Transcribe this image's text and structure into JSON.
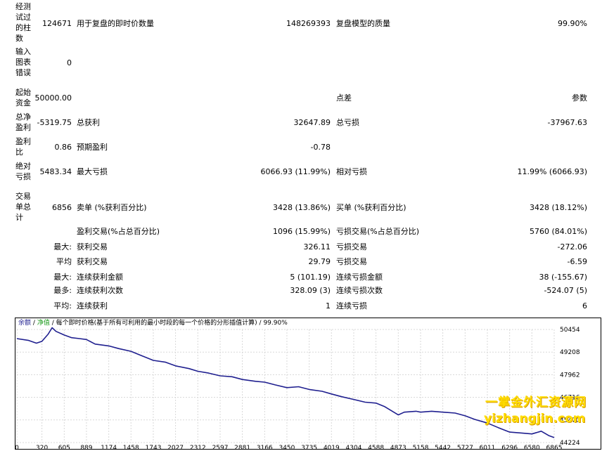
{
  "stats": {
    "bars_tested_label": "经测试过的柱数",
    "bars_tested_value": "124671",
    "ticks_label": "用于复盘的即时价数量",
    "ticks_value": "148269393",
    "quality_label": "复盘模型的质量",
    "quality_value": "99.90%",
    "errors_label": "输入图表错误",
    "errors_value": "0",
    "deposit_label": "起始资金",
    "deposit_value": "50000.00",
    "spread_label": "点差",
    "params_label": "参数",
    "net_profit_label": "总净盈利",
    "net_profit_value": "-5319.75",
    "gross_profit_label": "总获利",
    "gross_profit_value": "32647.89",
    "gross_loss_label": "总亏损",
    "gross_loss_value": "-37967.63",
    "profit_factor_label": "盈利比",
    "profit_factor_value": "0.86",
    "expected_payoff_label": "预期盈利",
    "expected_payoff_value": "-0.78",
    "abs_drawdown_label": "绝对亏损",
    "abs_drawdown_value": "5483.34",
    "max_drawdown_label": "最大亏损",
    "max_drawdown_value": "6066.93 (11.99%)",
    "rel_drawdown_label": "相对亏损",
    "rel_drawdown_value": "11.99% (6066.93)",
    "total_trades_label": "交易单总计",
    "total_trades_value": "6856",
    "short_label": "卖单 (%获利百分比)",
    "short_value": "3428 (13.86%)",
    "long_label": "买单 (%获利百分比)",
    "long_value": "3428 (18.12%)",
    "profit_trades_label": "盈利交易(%占总百分比)",
    "profit_trades_value": "1096 (15.99%)",
    "loss_trades_label": "亏损交易(%占总百分比)",
    "loss_trades_value": "5760 (84.01%)",
    "largest_prefix": "最大:",
    "largest_profit_label": "获利交易",
    "largest_profit_value": "326.11",
    "largest_loss_label": "亏损交易",
    "largest_loss_value": "-272.06",
    "average_prefix": "平均",
    "average_profit_label": "获利交易",
    "average_profit_value": "29.79",
    "average_loss_label": "亏损交易",
    "average_loss_value": "-6.59",
    "max_consec_prefix": "最大:",
    "max_consec_wins_label": "连续获利金额",
    "max_consec_wins_value": "5 (101.19)",
    "max_consec_losses_label": "连续亏损金额",
    "max_consec_losses_value": "38 (-155.67)",
    "maximal_prefix": "最多:",
    "maximal_wins_label": "连续获利次数",
    "maximal_wins_value": "328.09 (3)",
    "maximal_losses_label": "连续亏损次数",
    "maximal_losses_value": "-524.07 (5)",
    "avg_consec_prefix": "平均:",
    "avg_consec_wins_label": "连续获利",
    "avg_consec_wins_value": "1",
    "avg_consec_losses_label": "连续亏损",
    "avg_consec_losses_value": "6"
  },
  "chart_caption": {
    "balance": "余额",
    "equity": "净值",
    "model": "每个即时价格(基于所有可利用的最小时段的每一个价格的分形插值计算)",
    "quality": "99.90%",
    "sep": "/",
    "balance_color": "#1f1f8f",
    "equity_color": "#1a9a1a"
  },
  "watermark": {
    "line1": "一掌金外汇资源网",
    "line2": "yizhangjin.com"
  },
  "chart_data": {
    "type": "line",
    "title": "",
    "xlabel": "",
    "ylabel": "",
    "x_ticks": [
      "0",
      "320",
      "605",
      "889",
      "1174",
      "1458",
      "1743",
      "2027",
      "2312",
      "2597",
      "2881",
      "3166",
      "3450",
      "3735",
      "4019",
      "4304",
      "4588",
      "4873",
      "5158",
      "5442",
      "5727",
      "6011",
      "6296",
      "6580",
      "6865"
    ],
    "y_ticks": [
      "50454",
      "49208",
      "47962",
      "46716",
      "45470",
      "44224"
    ],
    "xlim": [
      0,
      6865
    ],
    "ylim": [
      44224,
      50454
    ],
    "grid": true,
    "series": [
      {
        "color": "#1f1f8f",
        "x": [
          0,
          150,
          250,
          320,
          400,
          450,
          500,
          605,
          700,
          800,
          889,
          1000,
          1174,
          1300,
          1458,
          1600,
          1743,
          1900,
          2027,
          2200,
          2312,
          2450,
          2597,
          2750,
          2881,
          3050,
          3166,
          3300,
          3450,
          3600,
          3735,
          3900,
          4019,
          4150,
          4304,
          4450,
          4588,
          4700,
          4873,
          4950,
          5100,
          5158,
          5300,
          5442,
          5600,
          5727,
          5850,
          6011,
          6150,
          6296,
          6450,
          6580,
          6700,
          6800,
          6865
        ],
        "y": [
          49950,
          49850,
          49700,
          49800,
          50200,
          50550,
          50350,
          50150,
          50000,
          49950,
          49900,
          49650,
          49550,
          49400,
          49250,
          49000,
          48750,
          48650,
          48450,
          48300,
          48150,
          48050,
          47900,
          47850,
          47700,
          47600,
          47550,
          47400,
          47250,
          47300,
          47150,
          47050,
          46900,
          46750,
          46600,
          46450,
          46400,
          46200,
          45750,
          45900,
          45950,
          45900,
          45950,
          45900,
          45850,
          45700,
          45500,
          45300,
          45050,
          44800,
          44750,
          44700,
          44850,
          44600,
          44500
        ]
      }
    ]
  }
}
